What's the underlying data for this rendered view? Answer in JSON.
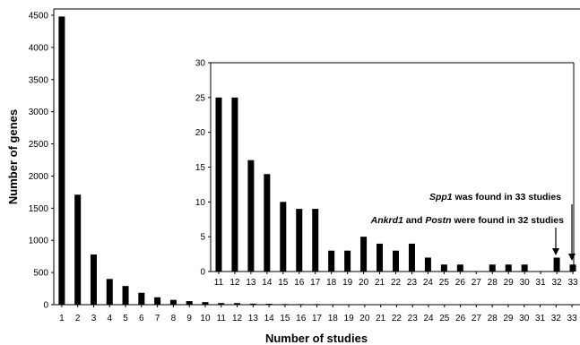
{
  "chart_data": [
    {
      "id": "main",
      "type": "bar",
      "xlabel": "Number of studies",
      "ylabel": "Number of genes",
      "ylim": [
        0,
        4500
      ],
      "yticks": [
        0,
        500,
        1000,
        1500,
        2000,
        2500,
        3000,
        3500,
        4000,
        4500
      ],
      "categories": [
        "1",
        "2",
        "3",
        "4",
        "5",
        "6",
        "7",
        "8",
        "9",
        "10",
        "11",
        "12",
        "13",
        "14",
        "15",
        "16",
        "17",
        "18",
        "19",
        "20",
        "21",
        "22",
        "23",
        "24",
        "25",
        "26",
        "27",
        "28",
        "29",
        "30",
        "31",
        "32",
        "33"
      ],
      "values": [
        4480,
        1710,
        780,
        400,
        290,
        185,
        115,
        75,
        55,
        40,
        25,
        25,
        16,
        14,
        10,
        9,
        9,
        3,
        3,
        5,
        4,
        3,
        4,
        2,
        1,
        1,
        0,
        1,
        1,
        1,
        0,
        2,
        1
      ],
      "grid": false
    },
    {
      "id": "inset",
      "type": "bar",
      "ylim": [
        0,
        30
      ],
      "yticks": [
        0,
        5,
        10,
        15,
        20,
        25,
        30
      ],
      "categories": [
        "11",
        "12",
        "13",
        "14",
        "15",
        "16",
        "17",
        "18",
        "19",
        "20",
        "21",
        "22",
        "23",
        "24",
        "25",
        "26",
        "27",
        "28",
        "29",
        "30",
        "31",
        "32",
        "33"
      ],
      "values": [
        25,
        25,
        16,
        14,
        10,
        9,
        9,
        3,
        3,
        5,
        4,
        3,
        4,
        2,
        1,
        1,
        0,
        1,
        1,
        1,
        0,
        2,
        1
      ],
      "grid": false,
      "annotations": [
        {
          "gene": "Spp1",
          "rest": " was found in 33 studies",
          "target": "33"
        },
        {
          "gene1": "Ankrd1",
          "mid": " and ",
          "gene2": "Postn",
          "rest": " were found in 32 studies",
          "target": "32"
        }
      ]
    }
  ]
}
